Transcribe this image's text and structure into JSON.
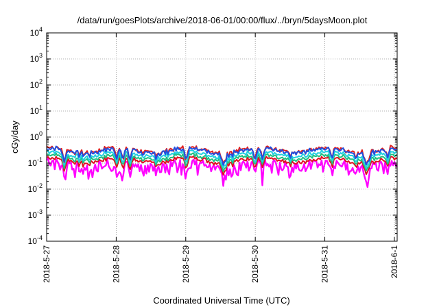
{
  "chart_data": {
    "type": "line",
    "title": "/data/run/goesPlots/archive/2018-06-01/00:00/flux/../bryn/5daysMoon.plot",
    "xlabel": "Coordinated Universal Time (UTC)",
    "ylabel": "cGy/day",
    "x_ticks": [
      "2018-5-27",
      "2018-5-28",
      "2018-5-29",
      "2018-5-30",
      "2018-5-31",
      "2018-6-1"
    ],
    "x_range_days": [
      0,
      5.04
    ],
    "y_scale": "log",
    "ylim": [
      0.0001,
      10000
    ],
    "y_ticks": [
      {
        "base": "10",
        "exp": "4"
      },
      {
        "base": "10",
        "exp": "3"
      },
      {
        "base": "10",
        "exp": "2"
      },
      {
        "base": "10",
        "exp": "1"
      },
      {
        "base": "10",
        "exp": "0"
      },
      {
        "base": "10",
        "exp": "-1"
      },
      {
        "base": "10",
        "exp": "-2"
      },
      {
        "base": "10",
        "exp": "-3"
      },
      {
        "base": "10",
        "exp": "-4"
      }
    ],
    "grid": true,
    "series": [
      {
        "color": "#ff00ff",
        "base": 0.09,
        "noise": 0.35,
        "dip": 0.5
      },
      {
        "color": "#e01020",
        "base": 0.13,
        "noise": 0.08,
        "dip": 0.25
      },
      {
        "color": "#20c080",
        "base": 0.17,
        "noise": 0.08,
        "dip": 0.25
      },
      {
        "color": "#20d0e0",
        "base": 0.22,
        "noise": 0.09,
        "dip": 0.3
      },
      {
        "color": "#e02020",
        "base": 0.33,
        "noise": 0.12,
        "dip": 0.35
      },
      {
        "color": "#2050e0",
        "base": 0.3,
        "noise": 0.12,
        "dip": 0.35
      }
    ],
    "dips_days": [
      0.25,
      1.0,
      1.1,
      1.2,
      2.0,
      2.55,
      3.0,
      3.1,
      4.1,
      4.6,
      4.9
    ]
  }
}
